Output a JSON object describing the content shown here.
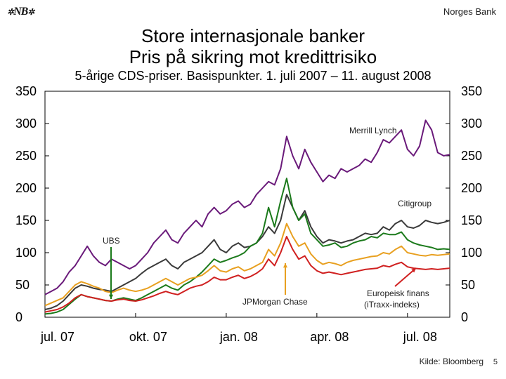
{
  "header": {
    "logo_text": "NB",
    "logo_mark": "✲",
    "org_name": "Norges Bank"
  },
  "footer": {
    "source": "Kilde: Bloomberg",
    "page_number": "5"
  },
  "colors": {
    "merrill": "#6a1a7a",
    "citi": "#3a3a3a",
    "ubs": "#1b7a1b",
    "jpm": "#e8a020",
    "itraxx": "#d02020"
  },
  "chart_data": {
    "type": "line",
    "title": "Store internasjonale banker",
    "title_line2": "Pris på sikring mot kredittrisiko",
    "subtitle": "5-årige CDS-priser. Basispunkter. 1. juli 2007 – 11. august 2008",
    "ylim": [
      0,
      350
    ],
    "yticks": [
      0,
      50,
      100,
      150,
      200,
      250,
      300,
      350
    ],
    "x_tick_labels": [
      "jul. 07",
      "okt. 07",
      "jan. 08",
      "apr. 08",
      "jul. 08"
    ],
    "x_tick_positions": [
      0,
      3,
      6,
      9,
      12
    ],
    "xlim": [
      0,
      13.4
    ],
    "series": [
      {
        "name": "Merrill Lynch",
        "color_key": "merrill",
        "x": [
          0,
          0.2,
          0.4,
          0.6,
          0.8,
          1.0,
          1.2,
          1.4,
          1.6,
          1.8,
          2.0,
          2.2,
          2.4,
          2.6,
          2.8,
          3.0,
          3.2,
          3.4,
          3.6,
          3.8,
          4.0,
          4.2,
          4.4,
          4.6,
          4.8,
          5.0,
          5.2,
          5.4,
          5.6,
          5.8,
          6.0,
          6.2,
          6.4,
          6.6,
          6.8,
          7.0,
          7.2,
          7.4,
          7.6,
          7.8,
          8.0,
          8.2,
          8.4,
          8.6,
          8.8,
          9.0,
          9.2,
          9.4,
          9.6,
          9.8,
          10.0,
          10.2,
          10.4,
          10.6,
          10.8,
          11.0,
          11.2,
          11.4,
          11.6,
          11.8,
          12.0,
          12.2,
          12.4,
          12.6,
          12.8,
          13.0,
          13.2,
          13.4
        ],
        "values": [
          35,
          40,
          45,
          55,
          70,
          80,
          95,
          110,
          95,
          85,
          80,
          90,
          85,
          80,
          75,
          80,
          90,
          100,
          115,
          125,
          135,
          120,
          115,
          130,
          140,
          150,
          140,
          160,
          170,
          160,
          165,
          175,
          180,
          170,
          175,
          190,
          200,
          210,
          205,
          230,
          280,
          250,
          230,
          260,
          240,
          225,
          210,
          220,
          215,
          230,
          225,
          230,
          235,
          245,
          240,
          255,
          275,
          270,
          280,
          290,
          260,
          250,
          265,
          305,
          290,
          255,
          250,
          252
        ]
      },
      {
        "name": "Citigroup",
        "color_key": "citi",
        "x": [
          0,
          0.2,
          0.4,
          0.6,
          0.8,
          1.0,
          1.2,
          1.4,
          1.6,
          1.8,
          2.0,
          2.2,
          2.4,
          2.6,
          2.8,
          3.0,
          3.2,
          3.4,
          3.6,
          3.8,
          4.0,
          4.2,
          4.4,
          4.6,
          4.8,
          5.0,
          5.2,
          5.4,
          5.6,
          5.8,
          6.0,
          6.2,
          6.4,
          6.6,
          6.8,
          7.0,
          7.2,
          7.4,
          7.6,
          7.8,
          8.0,
          8.2,
          8.4,
          8.6,
          8.8,
          9.0,
          9.2,
          9.4,
          9.6,
          9.8,
          10.0,
          10.2,
          10.4,
          10.6,
          10.8,
          11.0,
          11.2,
          11.4,
          11.6,
          11.8,
          12.0,
          12.2,
          12.4,
          12.6,
          12.8,
          13.0,
          13.2,
          13.4
        ],
        "values": [
          12,
          14,
          18,
          25,
          35,
          45,
          50,
          48,
          45,
          43,
          42,
          40,
          45,
          50,
          55,
          60,
          68,
          75,
          80,
          85,
          90,
          80,
          75,
          85,
          90,
          95,
          100,
          110,
          120,
          105,
          100,
          110,
          115,
          108,
          110,
          115,
          125,
          140,
          130,
          150,
          190,
          170,
          150,
          165,
          140,
          125,
          115,
          120,
          118,
          115,
          118,
          120,
          125,
          130,
          128,
          130,
          140,
          135,
          145,
          150,
          140,
          138,
          142,
          150,
          147,
          145,
          147,
          150
        ]
      },
      {
        "name": "UBS",
        "color_key": "ubs",
        "x": [
          0,
          0.2,
          0.4,
          0.6,
          0.8,
          1.0,
          1.2,
          1.4,
          1.6,
          1.8,
          2.0,
          2.2,
          2.4,
          2.6,
          2.8,
          3.0,
          3.2,
          3.4,
          3.6,
          3.8,
          4.0,
          4.2,
          4.4,
          4.6,
          4.8,
          5.0,
          5.2,
          5.4,
          5.6,
          5.8,
          6.0,
          6.2,
          6.4,
          6.6,
          6.8,
          7.0,
          7.2,
          7.4,
          7.6,
          7.8,
          8.0,
          8.2,
          8.4,
          8.6,
          8.8,
          9.0,
          9.2,
          9.4,
          9.6,
          9.8,
          10.0,
          10.2,
          10.4,
          10.6,
          10.8,
          11.0,
          11.2,
          11.4,
          11.6,
          11.8,
          12.0,
          12.2,
          12.4,
          12.6,
          12.8,
          13.0,
          13.2,
          13.4
        ],
        "values": [
          5,
          6,
          8,
          12,
          20,
          28,
          35,
          32,
          30,
          28,
          26,
          25,
          28,
          30,
          28,
          26,
          30,
          35,
          40,
          45,
          50,
          45,
          42,
          50,
          55,
          62,
          70,
          80,
          90,
          85,
          88,
          92,
          95,
          100,
          110,
          115,
          130,
          170,
          140,
          180,
          215,
          170,
          150,
          160,
          130,
          120,
          110,
          112,
          115,
          108,
          110,
          115,
          118,
          120,
          125,
          123,
          130,
          128,
          128,
          132,
          120,
          115,
          112,
          110,
          108,
          105,
          106,
          105
        ]
      },
      {
        "name": "JPMorgan Chase",
        "color_key": "jpm",
        "x": [
          0,
          0.2,
          0.4,
          0.6,
          0.8,
          1.0,
          1.2,
          1.4,
          1.6,
          1.8,
          2.0,
          2.2,
          2.4,
          2.6,
          2.8,
          3.0,
          3.2,
          3.4,
          3.6,
          3.8,
          4.0,
          4.2,
          4.4,
          4.6,
          4.8,
          5.0,
          5.2,
          5.4,
          5.6,
          5.8,
          6.0,
          6.2,
          6.4,
          6.6,
          6.8,
          7.0,
          7.2,
          7.4,
          7.6,
          7.8,
          8.0,
          8.2,
          8.4,
          8.6,
          8.8,
          9.0,
          9.2,
          9.4,
          9.6,
          9.8,
          10.0,
          10.2,
          10.4,
          10.6,
          10.8,
          11.0,
          11.2,
          11.4,
          11.6,
          11.8,
          12.0,
          12.2,
          12.4,
          12.6,
          12.8,
          13.0,
          13.2,
          13.4
        ],
        "values": [
          18,
          22,
          26,
          30,
          40,
          50,
          55,
          52,
          48,
          45,
          40,
          38,
          42,
          45,
          42,
          40,
          42,
          45,
          50,
          55,
          60,
          55,
          50,
          55,
          60,
          62,
          65,
          72,
          80,
          72,
          70,
          75,
          78,
          72,
          75,
          80,
          85,
          105,
          95,
          115,
          145,
          125,
          110,
          115,
          98,
          88,
          82,
          85,
          83,
          80,
          85,
          88,
          90,
          92,
          94,
          95,
          100,
          98,
          105,
          110,
          100,
          98,
          96,
          95,
          97,
          96,
          97,
          98
        ]
      },
      {
        "name": "Europeisk finans (iTraxx-indeks)",
        "color_key": "itraxx",
        "x": [
          0,
          0.2,
          0.4,
          0.6,
          0.8,
          1.0,
          1.2,
          1.4,
          1.6,
          1.8,
          2.0,
          2.2,
          2.4,
          2.6,
          2.8,
          3.0,
          3.2,
          3.4,
          3.6,
          3.8,
          4.0,
          4.2,
          4.4,
          4.6,
          4.8,
          5.0,
          5.2,
          5.4,
          5.6,
          5.8,
          6.0,
          6.2,
          6.4,
          6.6,
          6.8,
          7.0,
          7.2,
          7.4,
          7.6,
          7.8,
          8.0,
          8.2,
          8.4,
          8.6,
          8.8,
          9.0,
          9.2,
          9.4,
          9.6,
          9.8,
          10.0,
          10.2,
          10.4,
          10.6,
          10.8,
          11.0,
          11.2,
          11.4,
          11.6,
          11.8,
          12.0,
          12.2,
          12.4,
          12.6,
          12.8,
          13.0,
          13.2,
          13.4
        ],
        "values": [
          8,
          10,
          12,
          16,
          22,
          30,
          35,
          32,
          30,
          28,
          26,
          25,
          27,
          28,
          26,
          25,
          27,
          30,
          33,
          37,
          40,
          37,
          35,
          40,
          45,
          48,
          50,
          55,
          62,
          58,
          58,
          62,
          65,
          60,
          63,
          68,
          75,
          90,
          80,
          100,
          125,
          105,
          90,
          95,
          80,
          72,
          68,
          70,
          68,
          66,
          68,
          70,
          72,
          74,
          75,
          76,
          80,
          78,
          82,
          85,
          78,
          76,
          75,
          74,
          75,
          74,
          75,
          76
        ]
      }
    ],
    "annotations": {
      "merrill": "Merrill Lynch",
      "citi": "Citigroup",
      "ubs": "UBS",
      "jpm": "JPMorgan Chase",
      "itraxx_line1": "Europeisk finans",
      "itraxx_line2": "(iTraxx-indeks)"
    }
  }
}
